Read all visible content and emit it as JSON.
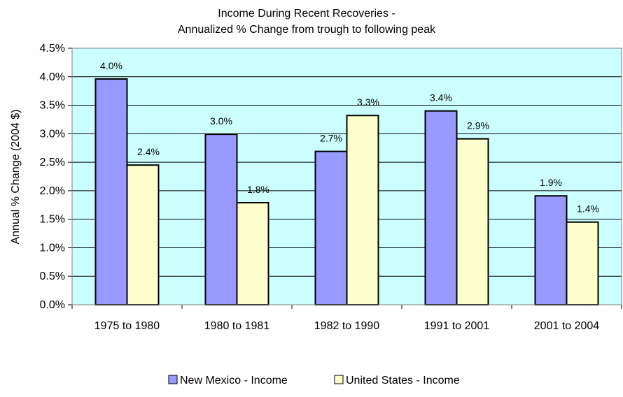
{
  "chart_data": {
    "type": "bar",
    "title": "Income During Recent Recoveries -",
    "subtitle": "Annualized % Change from trough to following peak",
    "xlabel": "",
    "ylabel": "Annual % Change (2004 $)",
    "ylim": [
      0.0,
      4.5
    ],
    "ytick_step": 0.5,
    "ytick_labels": [
      "0.0%",
      "0.5%",
      "1.0%",
      "1.5%",
      "2.0%",
      "2.5%",
      "3.0%",
      "3.5%",
      "4.0%",
      "4.5%"
    ],
    "grid": true,
    "legend_position": "bottom",
    "plot_background": "#ccffff",
    "categories": [
      "1975 to 1980",
      "1980 to 1981",
      "1982 to 1990",
      "1991 to 2001",
      "2001 to 2004"
    ],
    "series": [
      {
        "name": "New Mexico - Income",
        "color": "#9999ff",
        "values": [
          3.96,
          2.99,
          2.69,
          3.4,
          1.91
        ],
        "labels": [
          "4.0%",
          "3.0%",
          "2.7%",
          "3.4%",
          "1.9%"
        ]
      },
      {
        "name": "United States - Income",
        "color": "#ffffcc",
        "values": [
          2.45,
          1.79,
          3.32,
          2.91,
          1.45
        ],
        "labels": [
          "2.4%",
          "1.8%",
          "3.3%",
          "2.9%",
          "1.4%"
        ]
      }
    ]
  }
}
